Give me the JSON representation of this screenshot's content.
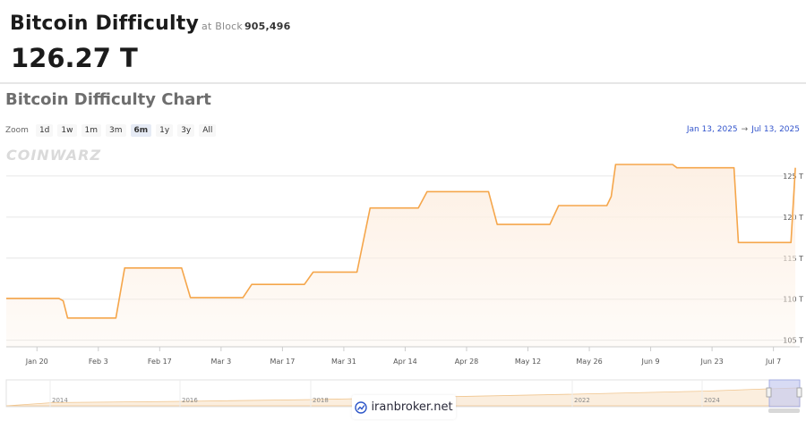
{
  "header": {
    "title": "Bitcoin Difficulty",
    "at_label": "at Block",
    "block": "905,496",
    "value": "126.27 T"
  },
  "chart_title": "Bitcoin Difficulty Chart",
  "zoom": {
    "label": "Zoom",
    "buttons": [
      "1d",
      "1w",
      "1m",
      "3m",
      "6m",
      "1y",
      "3y",
      "All"
    ],
    "active": "6m"
  },
  "range": {
    "from": "Jan 13, 2025",
    "arrow": "→",
    "to": "Jul 13, 2025"
  },
  "watermark": "COINWARZ",
  "badge": {
    "text": "iranbroker.net",
    "icon": "link-icon"
  },
  "colors": {
    "line": "#f5a64b",
    "fill": "#fdf0e4",
    "navigator_fill": "#c7ccf0"
  },
  "chart_data": {
    "type": "area",
    "title": "Bitcoin Difficulty Chart",
    "xlabel": "",
    "ylabel": "",
    "y_unit": "T",
    "x_range": [
      "2025-01-13",
      "2025-07-13"
    ],
    "ylim": [
      104.2,
      128.8
    ],
    "y_ticks": [
      105,
      110,
      115,
      120,
      125
    ],
    "y_tick_labels": [
      "105 T",
      "110 T",
      "115 T",
      "120 T",
      "125 T"
    ],
    "x_ticks": [
      "2025-01-20",
      "2025-02-03",
      "2025-02-17",
      "2025-03-03",
      "2025-03-17",
      "2025-03-31",
      "2025-04-14",
      "2025-04-28",
      "2025-05-12",
      "2025-05-26",
      "2025-06-09",
      "2025-06-23",
      "2025-07-07"
    ],
    "x_tick_labels": [
      "Jan 20",
      "Feb 3",
      "Feb 17",
      "Mar 3",
      "Mar 17",
      "Mar 31",
      "Apr 14",
      "Apr 28",
      "May 12",
      "May 26",
      "Jun 9",
      "Jun 23",
      "Jul 7"
    ],
    "grid": true,
    "legend": "none",
    "series": [
      {
        "points": [
          [
            "2025-01-13",
            110.1
          ],
          [
            "2025-01-25",
            110.1
          ],
          [
            "2025-01-26",
            109.8
          ],
          [
            "2025-01-27",
            107.7
          ],
          [
            "2025-02-07",
            107.7
          ],
          [
            "2025-02-09",
            113.8
          ],
          [
            "2025-02-22",
            113.8
          ],
          [
            "2025-02-24",
            110.2
          ],
          [
            "2025-03-08",
            110.2
          ],
          [
            "2025-03-10",
            111.8
          ],
          [
            "2025-03-22",
            111.8
          ],
          [
            "2025-03-24",
            113.3
          ],
          [
            "2025-04-03",
            113.3
          ],
          [
            "2025-04-06",
            121.1
          ],
          [
            "2025-04-17",
            121.1
          ],
          [
            "2025-04-19",
            123.1
          ],
          [
            "2025-05-03",
            123.1
          ],
          [
            "2025-05-05",
            119.1
          ],
          [
            "2025-05-17",
            119.1
          ],
          [
            "2025-05-19",
            121.4
          ],
          [
            "2025-05-30",
            121.4
          ],
          [
            "2025-05-31",
            122.5
          ],
          [
            "2025-06-01",
            126.4
          ],
          [
            "2025-06-14",
            126.4
          ],
          [
            "2025-06-15",
            126.0
          ],
          [
            "2025-06-28",
            126.0
          ],
          [
            "2025-06-29",
            116.9
          ],
          [
            "2025-07-11",
            116.9
          ],
          [
            "2025-07-12",
            126.0
          ]
        ]
      }
    ],
    "navigator": {
      "x_tick_labels": [
        "2014",
        "2016",
        "2018",
        "2022",
        "2024"
      ]
    }
  }
}
